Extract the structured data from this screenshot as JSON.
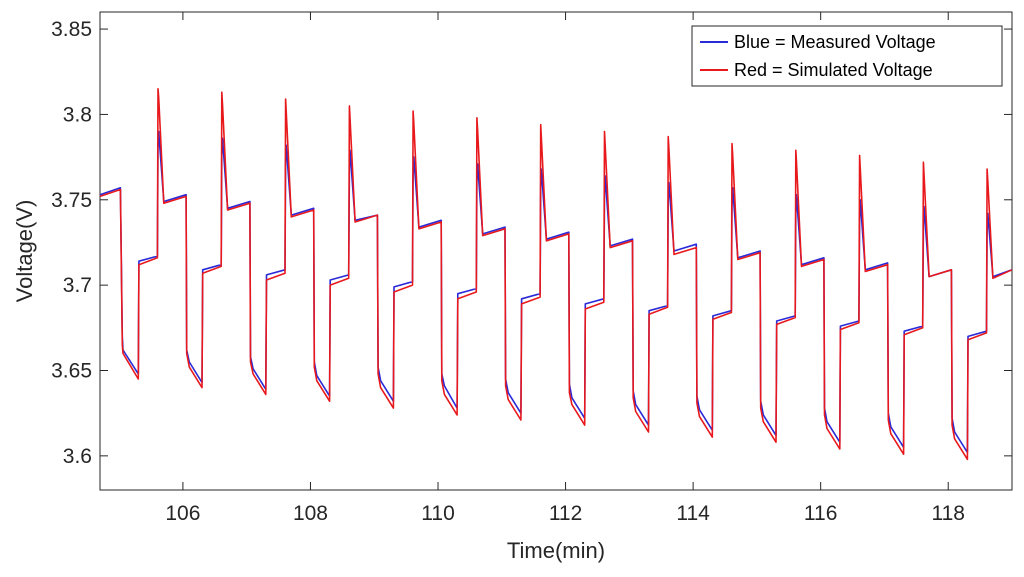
{
  "chart_data": {
    "type": "line",
    "xlabel": "Time(min)",
    "ylabel": "Voltage(V)",
    "xlim": [
      104.7,
      119.0
    ],
    "ylim": [
      3.58,
      3.86
    ],
    "xticks": [
      106,
      108,
      110,
      112,
      114,
      116,
      118
    ],
    "yticks": [
      3.6,
      3.65,
      3.7,
      3.75,
      3.8,
      3.85
    ],
    "xtick_labels": [
      "106",
      "108",
      "110",
      "112",
      "114",
      "116",
      "118"
    ],
    "ytick_labels": [
      "3.6",
      "3.65",
      "3.7",
      "3.75",
      "3.8",
      "3.85"
    ],
    "grid": false,
    "legend_position": "top-right",
    "series": [
      {
        "name": "Blue = Measured Voltage",
        "color": "#2a2ad8",
        "x": [
          104.7,
          105.02,
          105.05,
          105.06,
          105.3,
          105.31,
          105.6,
          105.61,
          105.62,
          105.7,
          106.05,
          106.06,
          106.1,
          106.3,
          106.31,
          106.6,
          106.61,
          106.62,
          106.7,
          107.05,
          107.06,
          107.1,
          107.3,
          107.31,
          107.6,
          107.61,
          107.62,
          107.7,
          108.05,
          108.06,
          108.1,
          108.3,
          108.31,
          108.6,
          108.61,
          108.62,
          108.7,
          109.05,
          109.06,
          109.1,
          109.3,
          109.31,
          109.6,
          109.61,
          109.62,
          109.7,
          110.05,
          110.06,
          110.1,
          110.3,
          110.31,
          110.6,
          110.61,
          110.62,
          110.7,
          111.05,
          111.06,
          111.1,
          111.3,
          111.31,
          111.6,
          111.61,
          111.62,
          111.7,
          112.05,
          112.06,
          112.1,
          112.3,
          112.31,
          112.6,
          112.61,
          112.62,
          112.7,
          113.05,
          113.06,
          113.1,
          113.3,
          113.31,
          113.6,
          113.61,
          113.62,
          113.7,
          114.05,
          114.06,
          114.1,
          114.3,
          114.31,
          114.6,
          114.61,
          114.62,
          114.7,
          115.05,
          115.06,
          115.1,
          115.3,
          115.31,
          115.6,
          115.61,
          115.62,
          115.7,
          116.05,
          116.06,
          116.1,
          116.3,
          116.31,
          116.6,
          116.61,
          116.62,
          116.7,
          117.05,
          117.06,
          117.1,
          117.3,
          117.31,
          117.6,
          117.61,
          117.62,
          117.7,
          118.05,
          118.06,
          118.1,
          118.3,
          118.31,
          118.6,
          118.61,
          118.62,
          118.7,
          119.0
        ],
        "y": [
          3.753,
          3.757,
          3.67,
          3.662,
          3.648,
          3.714,
          3.717,
          3.78,
          3.79,
          3.749,
          3.753,
          3.662,
          3.655,
          3.643,
          3.709,
          3.712,
          3.776,
          3.786,
          3.745,
          3.749,
          3.658,
          3.651,
          3.639,
          3.706,
          3.709,
          3.772,
          3.782,
          3.741,
          3.745,
          3.655,
          3.647,
          3.635,
          3.703,
          3.706,
          3.768,
          3.779,
          3.738,
          3.741,
          3.652,
          3.644,
          3.632,
          3.699,
          3.702,
          3.764,
          3.775,
          3.734,
          3.738,
          3.648,
          3.641,
          3.628,
          3.695,
          3.698,
          3.76,
          3.771,
          3.73,
          3.734,
          3.645,
          3.637,
          3.625,
          3.692,
          3.695,
          3.757,
          3.768,
          3.727,
          3.731,
          3.642,
          3.634,
          3.622,
          3.689,
          3.692,
          3.753,
          3.764,
          3.723,
          3.727,
          3.638,
          3.63,
          3.618,
          3.685,
          3.688,
          3.749,
          3.76,
          3.72,
          3.724,
          3.635,
          3.627,
          3.615,
          3.682,
          3.685,
          3.746,
          3.757,
          3.716,
          3.72,
          3.632,
          3.624,
          3.612,
          3.679,
          3.682,
          3.742,
          3.753,
          3.712,
          3.716,
          3.628,
          3.62,
          3.608,
          3.676,
          3.679,
          3.739,
          3.75,
          3.709,
          3.713,
          3.625,
          3.617,
          3.605,
          3.673,
          3.676,
          3.735,
          3.746,
          3.705,
          3.709,
          3.622,
          3.614,
          3.602,
          3.67,
          3.673,
          3.731,
          3.742,
          3.705,
          3.709
        ]
      },
      {
        "name": "Red = Simulated Voltage",
        "color": "#e8191c",
        "x": [
          104.7,
          105.02,
          105.05,
          105.06,
          105.3,
          105.31,
          105.6,
          105.61,
          105.62,
          105.7,
          106.05,
          106.06,
          106.1,
          106.3,
          106.31,
          106.6,
          106.61,
          106.62,
          106.7,
          107.05,
          107.06,
          107.1,
          107.3,
          107.31,
          107.6,
          107.61,
          107.62,
          107.7,
          108.05,
          108.06,
          108.1,
          108.3,
          108.31,
          108.6,
          108.61,
          108.62,
          108.7,
          109.05,
          109.06,
          109.1,
          109.3,
          109.31,
          109.6,
          109.61,
          109.62,
          109.7,
          110.05,
          110.06,
          110.1,
          110.3,
          110.31,
          110.6,
          110.61,
          110.62,
          110.7,
          111.05,
          111.06,
          111.1,
          111.3,
          111.31,
          111.6,
          111.61,
          111.62,
          111.7,
          112.05,
          112.06,
          112.1,
          112.3,
          112.31,
          112.6,
          112.61,
          112.62,
          112.7,
          113.05,
          113.06,
          113.1,
          113.3,
          113.31,
          113.6,
          113.61,
          113.62,
          113.7,
          114.05,
          114.06,
          114.1,
          114.3,
          114.31,
          114.6,
          114.61,
          114.62,
          114.7,
          115.05,
          115.06,
          115.1,
          115.3,
          115.31,
          115.6,
          115.61,
          115.62,
          115.7,
          116.05,
          116.06,
          116.1,
          116.3,
          116.31,
          116.6,
          116.61,
          116.62,
          116.7,
          117.05,
          117.06,
          117.1,
          117.3,
          117.31,
          117.6,
          117.61,
          117.62,
          117.7,
          118.05,
          118.06,
          118.1,
          118.3,
          118.31,
          118.6,
          118.61,
          118.62,
          118.7,
          119.0
        ],
        "y": [
          3.752,
          3.756,
          3.665,
          3.66,
          3.645,
          3.712,
          3.716,
          3.815,
          3.81,
          3.748,
          3.752,
          3.66,
          3.652,
          3.64,
          3.707,
          3.711,
          3.813,
          3.806,
          3.744,
          3.748,
          3.655,
          3.648,
          3.636,
          3.703,
          3.707,
          3.809,
          3.802,
          3.74,
          3.744,
          3.652,
          3.644,
          3.632,
          3.7,
          3.704,
          3.805,
          3.798,
          3.737,
          3.741,
          3.648,
          3.64,
          3.628,
          3.696,
          3.7,
          3.802,
          3.795,
          3.733,
          3.737,
          3.644,
          3.636,
          3.624,
          3.692,
          3.696,
          3.798,
          3.791,
          3.729,
          3.733,
          3.641,
          3.633,
          3.621,
          3.689,
          3.693,
          3.794,
          3.787,
          3.726,
          3.73,
          3.637,
          3.63,
          3.618,
          3.686,
          3.69,
          3.79,
          3.783,
          3.722,
          3.726,
          3.634,
          3.626,
          3.614,
          3.683,
          3.687,
          3.787,
          3.78,
          3.718,
          3.722,
          3.631,
          3.623,
          3.611,
          3.68,
          3.684,
          3.783,
          3.776,
          3.715,
          3.719,
          3.628,
          3.62,
          3.608,
          3.677,
          3.681,
          3.779,
          3.773,
          3.711,
          3.715,
          3.624,
          3.616,
          3.604,
          3.674,
          3.678,
          3.776,
          3.769,
          3.708,
          3.712,
          3.621,
          3.613,
          3.601,
          3.671,
          3.675,
          3.772,
          3.765,
          3.705,
          3.709,
          3.618,
          3.61,
          3.598,
          3.668,
          3.672,
          3.768,
          3.761,
          3.704,
          3.709
        ]
      }
    ]
  }
}
